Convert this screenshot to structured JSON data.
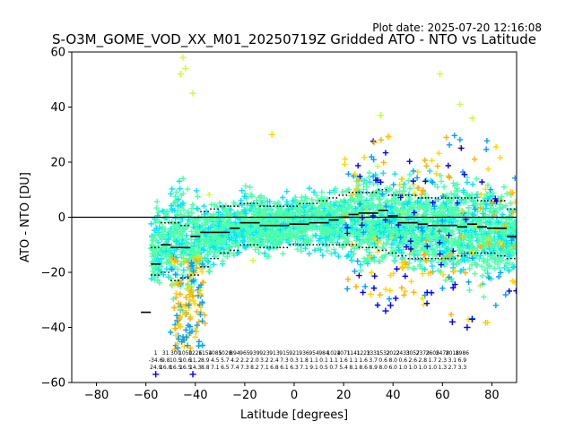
{
  "header": {
    "plot_date": "Plot date: 2025-07-20 12:16:08"
  },
  "chart_data": {
    "type": "scatter",
    "title": "S-O3M_GOME_VOD_XX_M01_20250719Z Gridded ATO - NTO vs Latitude",
    "xlabel": "Latitude [degrees]",
    "ylabel": "ATO - NTO [DU]",
    "xlim": [
      -90,
      90
    ],
    "ylim": [
      -60,
      60
    ],
    "xticks": [
      -80,
      -60,
      -40,
      -20,
      0,
      20,
      40,
      60,
      80
    ],
    "yticks": [
      -60,
      -40,
      -20,
      0,
      20,
      40,
      60
    ],
    "xtick_labels": [
      "−80",
      "−60",
      "−40",
      "−20",
      "0",
      "20",
      "40",
      "60",
      "80"
    ],
    "ytick_labels": [
      "−60",
      "−40",
      "−20",
      "0",
      "20",
      "40",
      "60"
    ],
    "grid": false,
    "legend": "none",
    "marker": "+",
    "colors": {
      "density_low": "#0000ff",
      "density_mid_low": "#00a0ff",
      "density_mid": "#00e5ff",
      "density_mid_high": "#4dffaa",
      "density_high": "#c8ff33",
      "density_top": "#ffd700",
      "density_peak": "#ffb000",
      "mean_line": "#000000",
      "zero_line": "#000000"
    },
    "zero_line": 0,
    "envelope": [
      {
        "lat": -58,
        "lower": -42,
        "upper": 12
      },
      {
        "lat": -54,
        "lower": -40,
        "upper": 20
      },
      {
        "lat": -50,
        "lower": -45,
        "upper": 28
      },
      {
        "lat": -46,
        "lower": -50,
        "upper": 40
      },
      {
        "lat": -42,
        "lower": -55,
        "upper": 30
      },
      {
        "lat": -38,
        "lower": -34,
        "upper": 16
      },
      {
        "lat": -32,
        "lower": -26,
        "upper": 14
      },
      {
        "lat": -26,
        "lower": -24,
        "upper": 15
      },
      {
        "lat": -20,
        "lower": -24,
        "upper": 20
      },
      {
        "lat": -12,
        "lower": -22,
        "upper": 16
      },
      {
        "lat": -4,
        "lower": -22,
        "upper": 17
      },
      {
        "lat": 4,
        "lower": -22,
        "upper": 18
      },
      {
        "lat": 12,
        "lower": -22,
        "upper": 20
      },
      {
        "lat": 20,
        "lower": -26,
        "upper": 24
      },
      {
        "lat": 28,
        "lower": -32,
        "upper": 30
      },
      {
        "lat": 36,
        "lower": -34,
        "upper": 32
      },
      {
        "lat": 44,
        "lower": -32,
        "upper": 28
      },
      {
        "lat": 52,
        "lower": -34,
        "upper": 26
      },
      {
        "lat": 60,
        "lower": -38,
        "upper": 30
      },
      {
        "lat": 68,
        "lower": -40,
        "upper": 32
      },
      {
        "lat": 76,
        "lower": -40,
        "upper": 32
      },
      {
        "lat": 84,
        "lower": -36,
        "upper": 24
      },
      {
        "lat": 90,
        "lower": -28,
        "upper": 16
      }
    ],
    "outliers": [
      {
        "x": -45,
        "y": 58
      },
      {
        "x": -44,
        "y": 54
      },
      {
        "x": -46,
        "y": 52
      },
      {
        "x": -41,
        "y": 45
      },
      {
        "x": -9,
        "y": 30
      },
      {
        "x": 59,
        "y": 52
      },
      {
        "x": 67,
        "y": 41
      },
      {
        "x": 72,
        "y": 36
      },
      {
        "x": -41,
        "y": -57
      },
      {
        "x": -56,
        "y": -57
      },
      {
        "x": 35,
        "y": 37
      },
      {
        "x": 31,
        "y": -28
      },
      {
        "x": 37,
        "y": -34
      },
      {
        "x": 39,
        "y": -32
      },
      {
        "x": 44,
        "y": -18
      },
      {
        "x": 70,
        "y": -40
      },
      {
        "x": 72,
        "y": -37
      },
      {
        "x": 64,
        "y": -38
      }
    ],
    "bins": [
      {
        "lat": -60,
        "mean": -34.5,
        "p_lower": null,
        "p_upper": null,
        "stats": [
          "",
          "",
          ""
        ]
      },
      {
        "lat": -56,
        "mean": -17,
        "p_lower": -21,
        "p_upper": -11,
        "stats": [
          "1",
          "-34.6",
          "24.9"
        ]
      },
      {
        "lat": -52,
        "mean": -10,
        "p_lower": -20,
        "p_upper": -2,
        "stats": [
          "31",
          "9.8",
          "16.8"
        ]
      },
      {
        "lat": -48,
        "mean": -11,
        "p_lower": -23,
        "p_upper": -2,
        "stats": [
          "300",
          "10.5",
          "16.5"
        ]
      },
      {
        "lat": -44,
        "mean": -11,
        "p_lower": -22,
        "p_upper": -3,
        "stats": [
          "1050",
          "10.6",
          "16.5"
        ]
      },
      {
        "lat": -40,
        "mean": -7,
        "p_lower": -21,
        "p_upper": 0,
        "stats": [
          "1226",
          "11.2",
          "14.3"
        ]
      },
      {
        "lat": -36,
        "mean": -5.5,
        "p_lower": -18,
        "p_upper": 2,
        "stats": [
          "1154",
          "8.9",
          "8.8"
        ]
      },
      {
        "lat": -32,
        "mean": -5.5,
        "p_lower": -15,
        "p_upper": 3,
        "stats": [
          "1085",
          "4.5",
          "7.1"
        ]
      },
      {
        "lat": -28,
        "mean": -5.5,
        "p_lower": -13,
        "p_upper": 4,
        "stats": [
          "1028",
          "5.7",
          "6.5"
        ]
      },
      {
        "lat": -24,
        "mean": -4,
        "p_lower": -12,
        "p_upper": 4,
        "stats": [
          "894",
          "4.2",
          "7.4"
        ]
      },
      {
        "lat": -20,
        "mean": -2,
        "p_lower": -10,
        "p_upper": 5,
        "stats": [
          "965",
          "2.2",
          "7.3"
        ]
      },
      {
        "lat": -16,
        "mean": -2,
        "p_lower": -10,
        "p_upper": 5,
        "stats": [
          "939",
          "2.0",
          "8.2"
        ]
      },
      {
        "lat": -12,
        "mean": -3,
        "p_lower": -11,
        "p_upper": 4,
        "stats": [
          "923",
          "3.2",
          "7.1"
        ]
      },
      {
        "lat": -8,
        "mean": -3,
        "p_lower": -11,
        "p_upper": 4,
        "stats": [
          "913",
          "2.4",
          "6.8"
        ]
      },
      {
        "lat": -4,
        "mean": -3,
        "p_lower": -11,
        "p_upper": 4,
        "stats": [
          "915",
          "7.3",
          "6.1"
        ]
      },
      {
        "lat": 0,
        "mean": -2.5,
        "p_lower": -10,
        "p_upper": 4,
        "stats": [
          "921",
          "0.3",
          "6.3"
        ]
      },
      {
        "lat": 4,
        "mean": -2.5,
        "p_lower": -10,
        "p_upper": 5,
        "stats": [
          "936",
          "1.8",
          "7.1"
        ]
      },
      {
        "lat": 8,
        "mean": -2,
        "p_lower": -10,
        "p_upper": 5,
        "stats": [
          "954",
          "1.1",
          "9.1"
        ]
      },
      {
        "lat": 12,
        "mean": -2,
        "p_lower": -10,
        "p_upper": 6,
        "stats": [
          "984",
          "0.1",
          "0.5"
        ]
      },
      {
        "lat": 16,
        "mean": -1,
        "p_lower": -10,
        "p_upper": 7,
        "stats": [
          "1024",
          "1.1",
          "0.7"
        ]
      },
      {
        "lat": 20,
        "mean": 0,
        "p_lower": -10,
        "p_upper": 8,
        "stats": [
          "1071",
          "1.6",
          "5.4"
        ]
      },
      {
        "lat": 24,
        "mean": 1,
        "p_lower": -10,
        "p_upper": 9,
        "stats": [
          "1141",
          "1.1",
          "8.1"
        ]
      },
      {
        "lat": 28,
        "mean": 1.5,
        "p_lower": -11,
        "p_upper": 9,
        "stats": [
          "1223",
          "1.6",
          "8.6"
        ]
      },
      {
        "lat": 32,
        "mean": 1.5,
        "p_lower": -11,
        "p_upper": 9,
        "stats": [
          "1331",
          "3.7",
          "8.9"
        ]
      },
      {
        "lat": 36,
        "mean": 2.5,
        "p_lower": -12,
        "p_upper": 10,
        "stats": [
          "1532",
          "0.6",
          "8.0"
        ]
      },
      {
        "lat": 40,
        "mean": 0.5,
        "p_lower": -13,
        "p_upper": 8,
        "stats": [
          "2022",
          "8.0",
          "6.0"
        ]
      },
      {
        "lat": 44,
        "mean": -2,
        "p_lower": -14,
        "p_upper": 8,
        "stats": [
          "2433",
          "0.6",
          "1.0"
        ]
      },
      {
        "lat": 48,
        "mean": -2,
        "p_lower": -15,
        "p_upper": 8,
        "stats": [
          "3057",
          "2.6",
          "1.0"
        ]
      },
      {
        "lat": 52,
        "mean": -2.5,
        "p_lower": -15,
        "p_upper": 7,
        "stats": [
          "2373",
          "2.8",
          "1.0"
        ]
      },
      {
        "lat": 56,
        "mean": -3,
        "p_lower": -15,
        "p_upper": 7,
        "stats": [
          "2605",
          "1.7",
          "1.0"
        ]
      },
      {
        "lat": 60,
        "mean": -3,
        "p_lower": -15,
        "p_upper": 7,
        "stats": [
          "2478",
          "2.3",
          "1.3"
        ]
      },
      {
        "lat": 64,
        "mean": -3,
        "p_lower": -15,
        "p_upper": 7,
        "stats": [
          "2018",
          "3.1",
          "2.7"
        ]
      },
      {
        "lat": 68,
        "mean": -3.5,
        "p_lower": -14,
        "p_upper": 7,
        "stats": [
          "1986",
          "6.9",
          "3.3"
        ]
      },
      {
        "lat": 72,
        "mean": -2.5,
        "p_lower": -13,
        "p_upper": 7,
        "stats": [
          "",
          "",
          ""
        ]
      },
      {
        "lat": 76,
        "mean": -3.5,
        "p_lower": -13,
        "p_upper": 6,
        "stats": [
          "",
          "",
          ""
        ]
      },
      {
        "lat": 80,
        "mean": -4,
        "p_lower": -13,
        "p_upper": 6,
        "stats": [
          "",
          "",
          ""
        ]
      },
      {
        "lat": 84,
        "mean": -4,
        "p_lower": -14,
        "p_upper": 6,
        "stats": [
          "",
          "",
          ""
        ]
      },
      {
        "lat": 88,
        "mean": -7,
        "p_lower": -15,
        "p_upper": 3,
        "stats": [
          "",
          "",
          ""
        ]
      }
    ]
  }
}
